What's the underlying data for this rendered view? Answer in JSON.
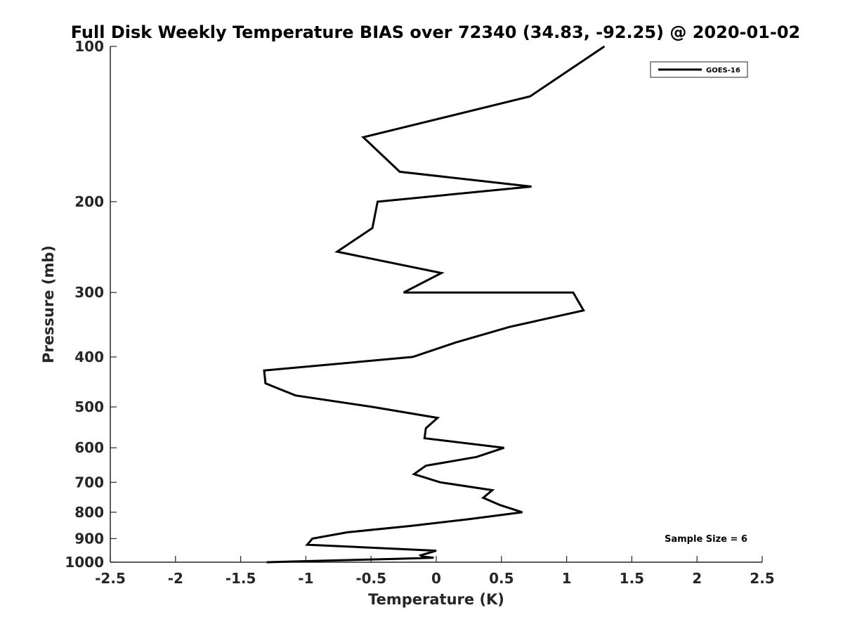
{
  "chart_data": {
    "type": "line",
    "title": "Full Disk Weekly Temperature BIAS over 72340 (34.83, -92.25) @ 2020-01-02",
    "xlabel": "Temperature (K)",
    "ylabel": "Pressure (mb)",
    "xlim": [
      -2.5,
      2.5
    ],
    "ylim": [
      100,
      1000
    ],
    "y_scale": "log",
    "y_reversed": true,
    "grid": false,
    "legend_position": "top-right",
    "xticks": [
      -2.5,
      -2,
      -1.5,
      -1,
      -0.5,
      0,
      0.5,
      1,
      1.5,
      2,
      2.5
    ],
    "xtick_labels": [
      "-2.5",
      "-2",
      "-1.5",
      "-1",
      "-0.5",
      "0",
      "0.5",
      "1",
      "1.5",
      "2",
      "2.5"
    ],
    "yticks": [
      100,
      200,
      300,
      400,
      500,
      600,
      700,
      800,
      900,
      1000
    ],
    "ytick_labels": [
      "100",
      "200",
      "300",
      "400",
      "500",
      "600",
      "700",
      "800",
      "900",
      "1000"
    ],
    "series": [
      {
        "name": "GOES-16",
        "color": "#000000",
        "x": [
          1.29,
          0.72,
          -0.56,
          -0.28,
          0.73,
          -0.45,
          -0.49,
          -0.76,
          0.04,
          -0.25,
          1.05,
          1.13,
          0.56,
          0.15,
          -0.18,
          -1.32,
          -1.31,
          -1.08,
          -0.49,
          0.01,
          -0.08,
          -0.09,
          0.52,
          0.31,
          -0.08,
          -0.17,
          0.03,
          0.43,
          0.36,
          0.49,
          0.66,
          0.25,
          -0.19,
          -0.68,
          -0.95,
          -0.99,
          0.0,
          -0.12,
          -0.11,
          -0.02,
          -0.31,
          -0.98,
          -1.3
        ],
        "y": [
          100,
          125,
          150,
          175,
          187,
          200,
          225,
          250,
          275,
          300,
          300,
          325,
          350,
          375,
          400,
          425,
          450,
          475,
          500,
          525,
          550,
          575,
          600,
          625,
          650,
          675,
          700,
          725,
          750,
          775,
          800,
          825,
          850,
          875,
          900,
          925,
          950,
          970,
          975,
          980,
          985,
          995,
          1000
        ]
      }
    ],
    "annotations": [
      "Sample Size = 6"
    ]
  }
}
